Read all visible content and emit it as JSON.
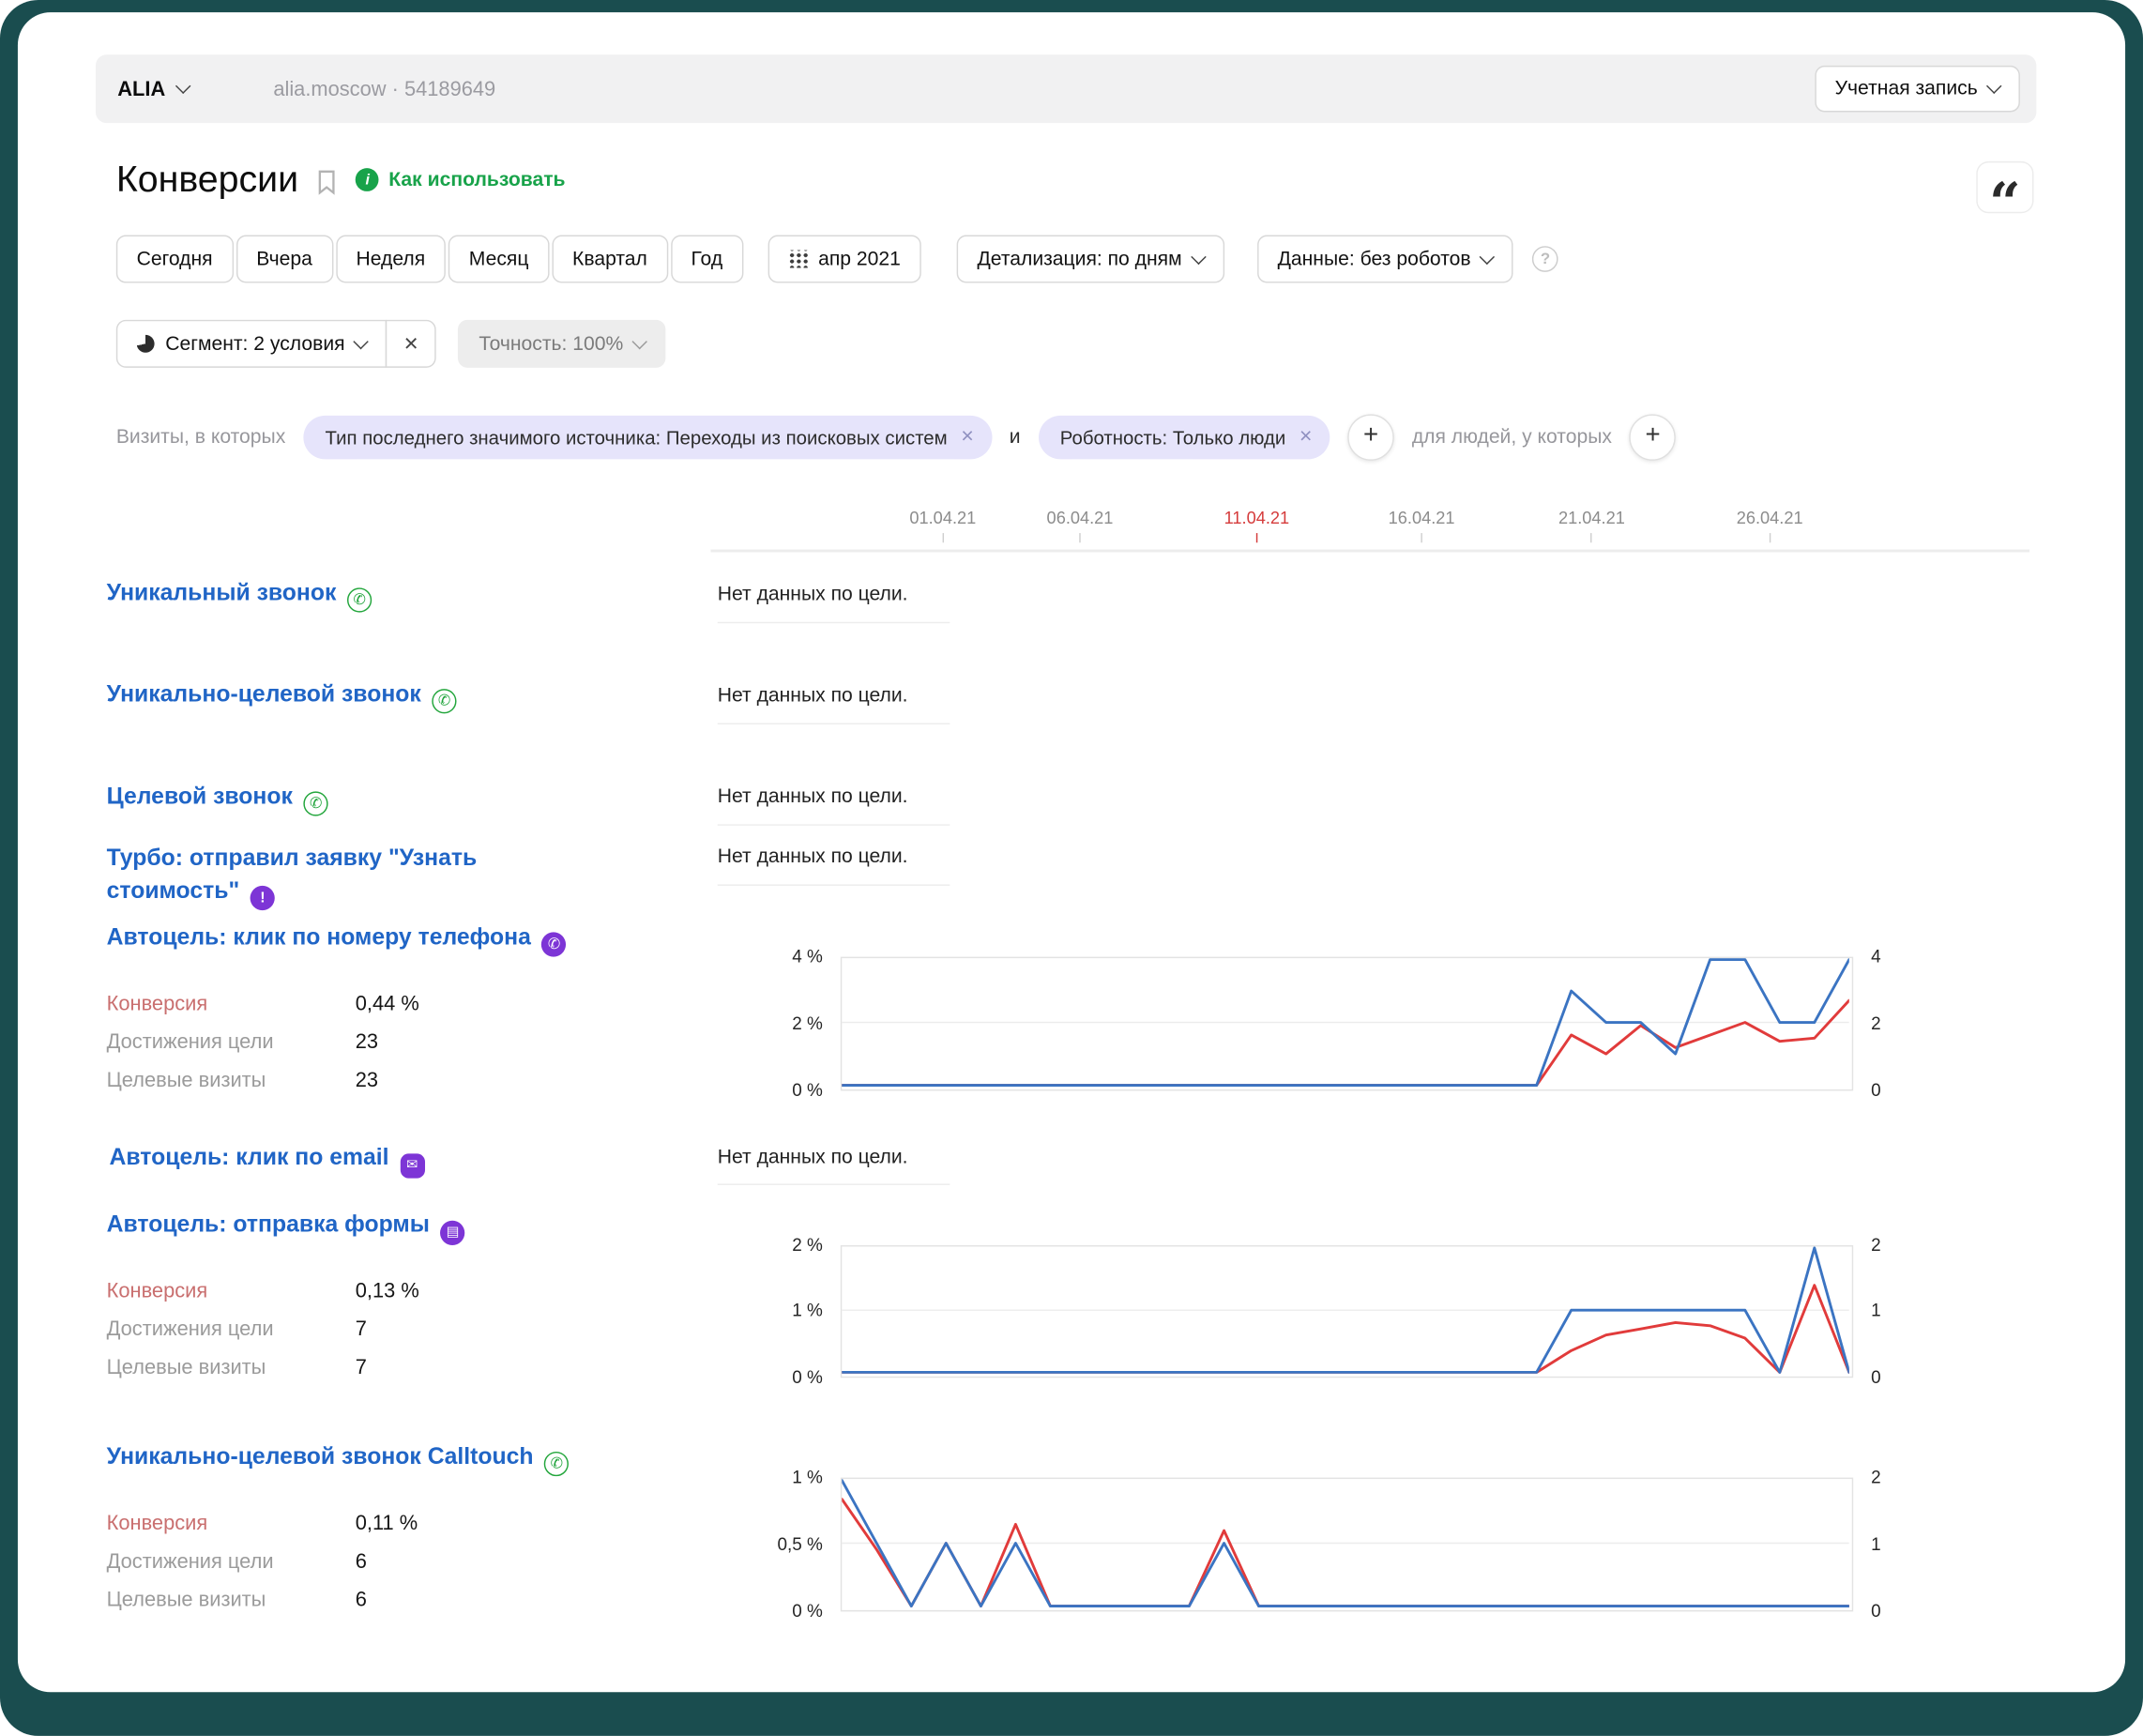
{
  "colors": {
    "frame": "#1a4d4f",
    "link_blue": "#2065c6",
    "green": "#18a34a",
    "purple": "#7d35d6",
    "chart_blue": "#3b74c2",
    "chart_red": "#e13b3b",
    "chip_bg": "#e6e4fb",
    "date_highlight": "#d53b3b"
  },
  "topbar": {
    "counter_name": "ALIA",
    "site": "alia.moscow · 54189649",
    "account_button": "Учетная запись"
  },
  "header": {
    "title": "Конверсии",
    "how_to_use": "Как использовать"
  },
  "controls": {
    "periods": [
      "Сегодня",
      "Вчера",
      "Неделя",
      "Месяц",
      "Квартал",
      "Год"
    ],
    "calendar": "апр 2021",
    "detail": "Детализация: по дням",
    "data_mode": "Данные: без роботов",
    "segment": "Сегмент: 2 условия",
    "accuracy": "Точность: 100%"
  },
  "filters": {
    "visits_label": "Визиты, в которых",
    "conditions": [
      "Тип последнего значимого источника: Переходы из поисковых систем",
      "Роботность: Только люди"
    ],
    "and_label": "и",
    "people_label": "для людей, у которых"
  },
  "axis": {
    "dates": [
      "01.04.21",
      "06.04.21",
      "11.04.21",
      "16.04.21",
      "21.04.21",
      "26.04.21"
    ],
    "highlighted_date": "11.04.21"
  },
  "metrics_labels": {
    "conversion": "Конверсия",
    "reaches": "Достижения цели",
    "visits": "Целевые визиты"
  },
  "goals": [
    {
      "name": "Уникальный звонок",
      "icon": "phone-green",
      "status": "Нет данных по цели."
    },
    {
      "name": "Уникально-целевой звонок",
      "icon": "phone-green",
      "status": "Нет данных по цели."
    },
    {
      "name": "Целевой звонок",
      "icon": "phone-green",
      "status": "Нет данных по цели."
    },
    {
      "name": "Турбо: отправил заявку \"Узнать стоимость\"",
      "icon": "turbo-purple",
      "status": "Нет данных по цели."
    },
    {
      "name": "Автоцель: клик по номеру телефона",
      "icon": "phone-purple",
      "metrics": {
        "conversion": "0,44 %",
        "reaches": "23",
        "visits": "23"
      }
    },
    {
      "name": "Автоцель: клик по email",
      "icon": "email-purple",
      "status": "Нет данных по цели."
    },
    {
      "name": "Автоцель: отправка формы",
      "icon": "form-purple",
      "metrics": {
        "conversion": "0,13 %",
        "reaches": "7",
        "visits": "7"
      }
    },
    {
      "name": "Уникально-целевой звонок Calltouch",
      "icon": "phone-green",
      "metrics": {
        "conversion": "0,11 %",
        "reaches": "6",
        "visits": "6"
      }
    }
  ],
  "chart_data": [
    {
      "type": "line",
      "title": "Автоцель: клик по номеру телефона",
      "x_range": "01.04.21 – 30.04.21, по дням",
      "left_max": 4,
      "right_max": 4,
      "yticks_left": [
        "4 %",
        "2 %",
        "0 %"
      ],
      "yticks_right": [
        "4",
        "2",
        "0"
      ],
      "series": [
        {
          "name": "Конверсия, %",
          "axis": "left",
          "color": "#e13b3b",
          "values": [
            0,
            0,
            0,
            0,
            0,
            0,
            0,
            0,
            0,
            0,
            0,
            0,
            0,
            0,
            0,
            0,
            0,
            0,
            0,
            0,
            0,
            1.6,
            1,
            1.9,
            1.2,
            1.6,
            2,
            1.4,
            1.5,
            2.7
          ]
        },
        {
          "name": "Достижения цели",
          "axis": "right",
          "color": "#3b74c2",
          "values": [
            0,
            0,
            0,
            0,
            0,
            0,
            0,
            0,
            0,
            0,
            0,
            0,
            0,
            0,
            0,
            0,
            0,
            0,
            0,
            0,
            0,
            3,
            2,
            2,
            1,
            4,
            4,
            2,
            2,
            4
          ]
        }
      ]
    },
    {
      "type": "line",
      "title": "Автоцель: отправка формы",
      "x_range": "01.04.21 – 30.04.21, по дням",
      "left_max": 2,
      "right_max": 2,
      "yticks_left": [
        "2 %",
        "1 %",
        "0 %"
      ],
      "yticks_right": [
        "2",
        "1",
        "0"
      ],
      "series": [
        {
          "name": "Конверсия, %",
          "axis": "left",
          "color": "#e13b3b",
          "values": [
            0,
            0,
            0,
            0,
            0,
            0,
            0,
            0,
            0,
            0,
            0,
            0,
            0,
            0,
            0,
            0,
            0,
            0,
            0,
            0,
            0,
            0.35,
            0.6,
            0.7,
            0.8,
            0.75,
            0.55,
            0,
            1.4,
            0
          ]
        },
        {
          "name": "Достижения цели",
          "axis": "right",
          "color": "#3b74c2",
          "values": [
            0,
            0,
            0,
            0,
            0,
            0,
            0,
            0,
            0,
            0,
            0,
            0,
            0,
            0,
            0,
            0,
            0,
            0,
            0,
            0,
            0,
            1,
            1,
            1,
            1,
            1,
            1,
            0,
            2,
            0
          ]
        }
      ]
    },
    {
      "type": "line",
      "title": "Уникально-целевой звонок Calltouch",
      "x_range": "01.04.21 – 30.04.21, по дням",
      "left_max": 1,
      "right_max": 2,
      "yticks_left": [
        "1 %",
        "0,5 %",
        "0 %"
      ],
      "yticks_right": [
        "2",
        "1",
        "0"
      ],
      "series": [
        {
          "name": "Конверсия, %",
          "axis": "left",
          "color": "#e13b3b",
          "values": [
            0.85,
            0.45,
            0,
            0.5,
            0,
            0.65,
            0,
            0,
            0,
            0,
            0,
            0.6,
            0,
            0,
            0,
            0,
            0,
            0,
            0,
            0,
            0,
            0,
            0,
            0,
            0,
            0,
            0,
            0,
            0,
            0
          ]
        },
        {
          "name": "Достижения цели",
          "axis": "right",
          "color": "#3b74c2",
          "values": [
            2,
            1,
            0,
            1,
            0,
            1,
            0,
            0,
            0,
            0,
            0,
            1,
            0,
            0,
            0,
            0,
            0,
            0,
            0,
            0,
            0,
            0,
            0,
            0,
            0,
            0,
            0,
            0,
            0,
            0
          ]
        }
      ]
    }
  ]
}
